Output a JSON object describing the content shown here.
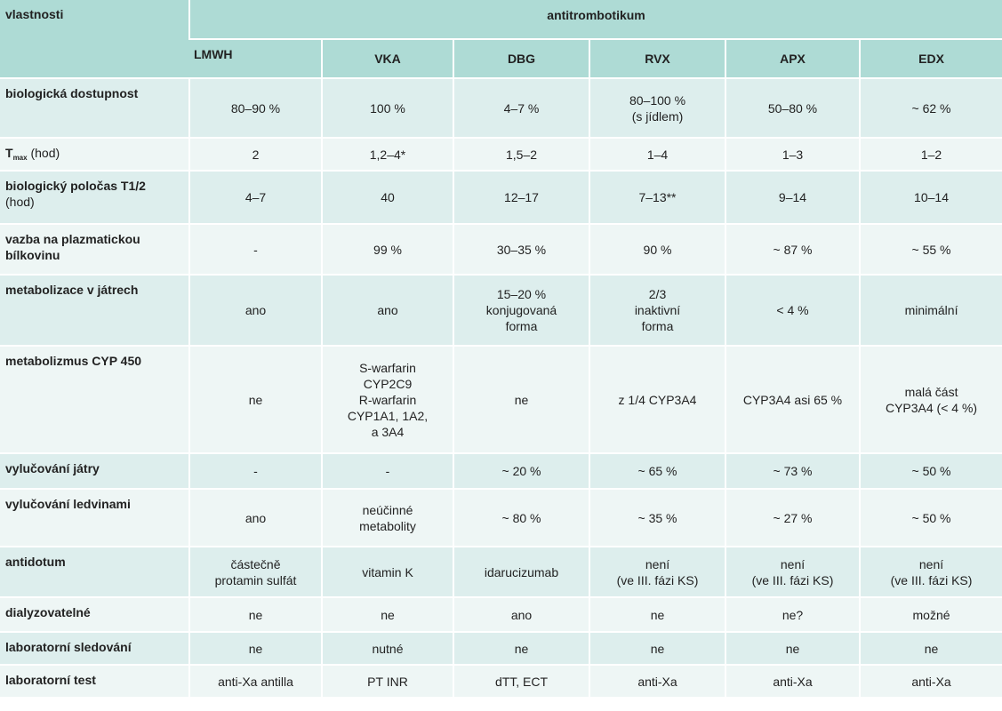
{
  "header": {
    "property_label": "vlastnosti",
    "group_label": "antitrombotikum",
    "columns": [
      "LMWH",
      "VKA",
      "DBG",
      "RVX",
      "APX",
      "EDX"
    ]
  },
  "rows": [
    {
      "label": "biologická dostupnost",
      "values": [
        [
          "80–90 %"
        ],
        [
          "100 %"
        ],
        [
          "4–7 %"
        ],
        [
          "80–100 %",
          "(s jídlem)"
        ],
        [
          "50–80 %"
        ],
        [
          "~ 62 %"
        ]
      ]
    },
    {
      "label_main": "T",
      "label_sub": "max",
      "label_unit": "(hod)",
      "values": [
        [
          "2"
        ],
        [
          "1,2–4*"
        ],
        [
          "1,5–2"
        ],
        [
          "1–4"
        ],
        [
          "1–3"
        ],
        [
          "1–2"
        ]
      ]
    },
    {
      "label": "biologický poločas T1/2",
      "label_unit": "(hod)",
      "values": [
        [
          "4–7"
        ],
        [
          "40"
        ],
        [
          "12–17"
        ],
        [
          "7–13**"
        ],
        [
          "9–14"
        ],
        [
          "10–14"
        ]
      ]
    },
    {
      "label": "vazba na plazmatickou bílkovinu",
      "values": [
        [
          "-"
        ],
        [
          "99 %"
        ],
        [
          "30–35 %"
        ],
        [
          "90 %"
        ],
        [
          "~ 87 %"
        ],
        [
          "~ 55 %"
        ]
      ]
    },
    {
      "label": "metabolizace v játrech",
      "values": [
        [
          "ano"
        ],
        [
          "ano"
        ],
        [
          "15–20 %",
          "konjugovaná",
          "forma"
        ],
        [
          "2/3",
          "inaktivní",
          "forma"
        ],
        [
          "< 4 %"
        ],
        [
          "minimální"
        ]
      ]
    },
    {
      "label": "metabolizmus CYP 450",
      "values": [
        [
          "ne"
        ],
        [
          "S-warfarin",
          "CYP2C9",
          "R-warfarin",
          "CYP1A1, 1A2,",
          "a 3A4"
        ],
        [
          "ne"
        ],
        [
          "z 1/4 CYP3A4"
        ],
        [
          "CYP3A4 asi 65 %"
        ],
        [
          "malá část",
          "CYP3A4 (< 4 %)"
        ]
      ]
    },
    {
      "label": "vylučování játry",
      "values": [
        [
          "-"
        ],
        [
          "-"
        ],
        [
          "~ 20 %"
        ],
        [
          "~ 65 %"
        ],
        [
          "~ 73 %"
        ],
        [
          "~ 50 %"
        ]
      ]
    },
    {
      "label": "vylučování ledvinami",
      "values": [
        [
          "ano"
        ],
        [
          "neúčinné",
          "metabolity"
        ],
        [
          "~ 80 %"
        ],
        [
          "~ 35 %"
        ],
        [
          "~ 27 %"
        ],
        [
          "~ 50 %"
        ]
      ]
    },
    {
      "label": "antidotum",
      "values": [
        [
          "částečně",
          "protamin sulfát"
        ],
        [
          "vitamin K"
        ],
        [
          "idarucizumab"
        ],
        [
          "není",
          "(ve III. fázi KS)"
        ],
        [
          "není",
          "(ve III. fázi KS)"
        ],
        [
          "není",
          "(ve III. fázi KS)"
        ]
      ]
    },
    {
      "label": "dialyzovatelné",
      "values": [
        [
          "ne"
        ],
        [
          "ne"
        ],
        [
          "ano"
        ],
        [
          "ne"
        ],
        [
          "ne?"
        ],
        [
          "možné"
        ]
      ]
    },
    {
      "label": "laboratorní sledování",
      "values": [
        [
          "ne"
        ],
        [
          "nutné"
        ],
        [
          "ne"
        ],
        [
          "ne"
        ],
        [
          "ne"
        ],
        [
          "ne"
        ]
      ]
    },
    {
      "label": "laboratorní test",
      "values": [
        [
          "anti-Xa antilla"
        ],
        [
          "PT INR"
        ],
        [
          "dTT, ECT"
        ],
        [
          "anti-Xa"
        ],
        [
          "anti-Xa"
        ],
        [
          "anti-Xa"
        ]
      ]
    }
  ]
}
